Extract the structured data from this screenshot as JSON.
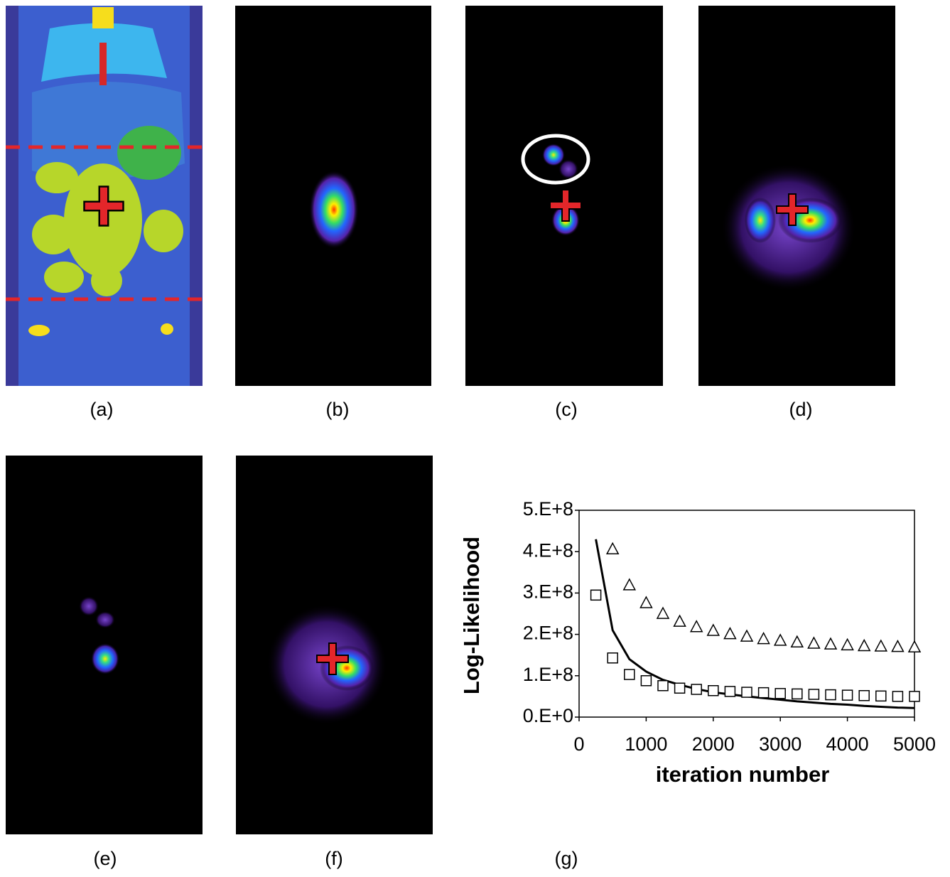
{
  "panels": [
    {
      "label": "(a)"
    },
    {
      "label": "(b)"
    },
    {
      "label": "(c)"
    },
    {
      "label": "(d)"
    },
    {
      "label": "(e)"
    },
    {
      "label": "(f)"
    }
  ],
  "chart_data": {
    "type": "line",
    "caption": "(g)",
    "x_label": "iteration number",
    "y_label": "Log-Likelihood",
    "x": [
      250,
      500,
      750,
      1000,
      1250,
      1500,
      1750,
      2000,
      2250,
      2500,
      2750,
      3000,
      3250,
      3500,
      3750,
      4000,
      4250,
      4500,
      4750,
      5000
    ],
    "series": [
      {
        "marker": "line",
        "color": "#000000",
        "values": [
          430000000,
          210000000,
          140000000,
          110000000,
          90000000,
          78000000,
          68000000,
          60000000,
          55000000,
          50000000,
          46000000,
          42000000,
          38000000,
          35000000,
          32000000,
          30000000,
          27000000,
          25000000,
          23000000,
          22000000
        ]
      },
      {
        "marker": "square",
        "color": "#000000",
        "values": [
          295000000,
          143000000,
          103000000,
          88000000,
          76000000,
          70000000,
          67000000,
          64000000,
          62000000,
          60000000,
          59000000,
          57000000,
          56000000,
          55000000,
          54000000,
          53000000,
          52000000,
          51000000,
          50000000,
          50000000
        ]
      },
      {
        "marker": "triangle",
        "color": "#000000",
        "values": [
          null,
          405000000,
          318000000,
          275000000,
          249000000,
          230000000,
          217000000,
          208000000,
          200000000,
          194000000,
          188000000,
          184000000,
          180000000,
          177000000,
          175000000,
          173000000,
          171000000,
          170000000,
          169000000,
          168000000
        ]
      }
    ],
    "xlim": [
      0,
      5000
    ],
    "xticks": [
      0,
      1000,
      2000,
      3000,
      4000,
      5000
    ],
    "ylim": [
      0,
      500000000
    ],
    "yticks": [
      {
        "value": 0,
        "label": "0.E+0"
      },
      {
        "value": 100000000,
        "label": "1.E+8"
      },
      {
        "value": 200000000,
        "label": "2.E+8"
      },
      {
        "value": 300000000,
        "label": "3.E+8"
      },
      {
        "value": 400000000,
        "label": "4.E+8"
      },
      {
        "value": 500000000,
        "label": "5.E+8"
      }
    ]
  }
}
